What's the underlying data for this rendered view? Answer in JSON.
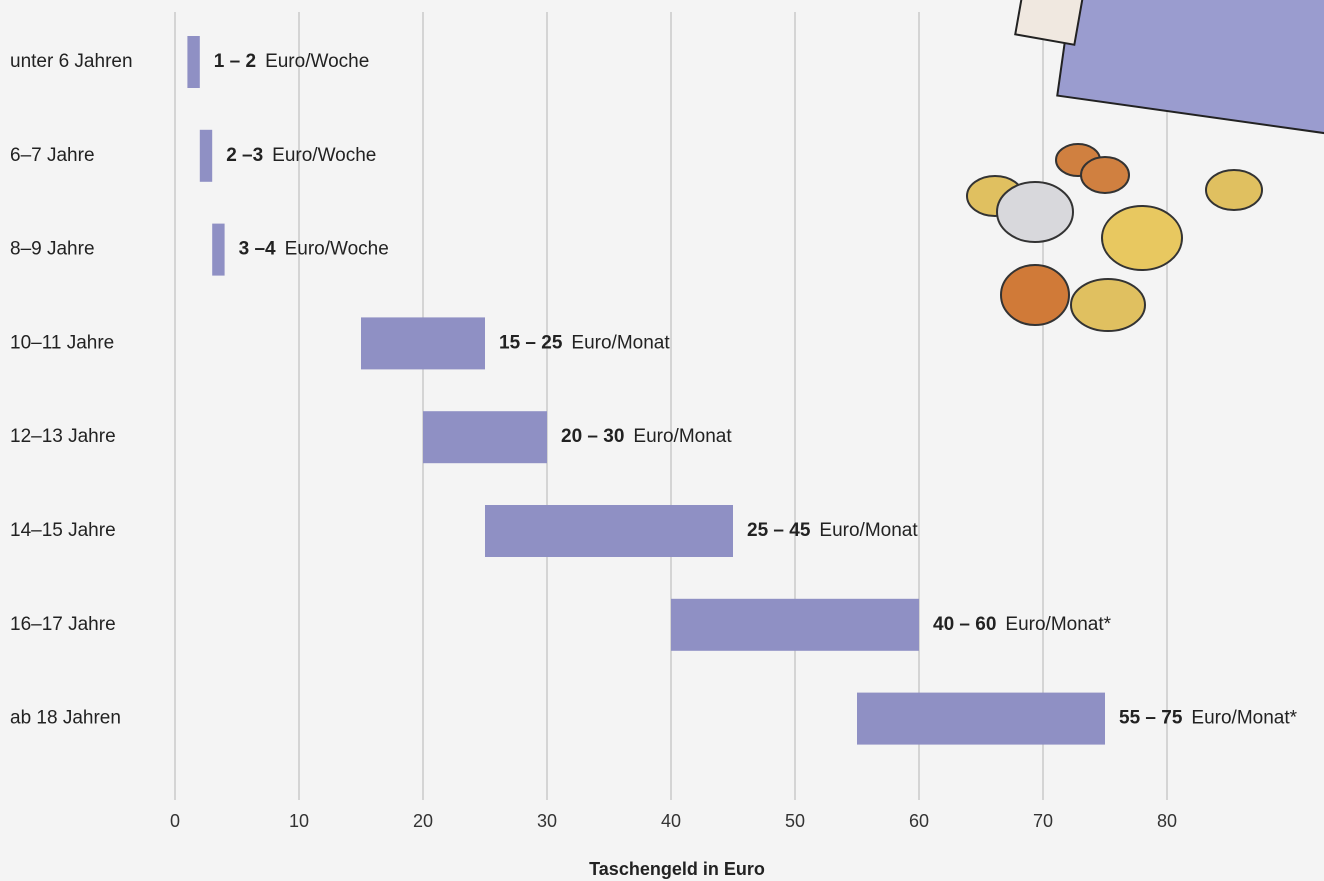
{
  "chart_data": {
    "type": "rangebar",
    "categories": [
      "unter 6 Jahren",
      "6–7 Jahre",
      "8–9 Jahre",
      "10–11 Jahre",
      "12–13 Jahre",
      "14–15 Jahre",
      "16–17 Jahre",
      "ab 18 Jahren"
    ],
    "values": [
      [
        1,
        2
      ],
      [
        2,
        3
      ],
      [
        3,
        4
      ],
      [
        15,
        25
      ],
      [
        20,
        30
      ],
      [
        25,
        45
      ],
      [
        40,
        60
      ],
      [
        55,
        75
      ]
    ],
    "value_labels": [
      "1 – 2",
      "2 –3",
      "3 –4",
      "15 – 25",
      "20 – 30",
      "25 – 45",
      "40 – 60",
      "55 – 75"
    ],
    "units": [
      "Euro/Woche",
      "Euro/Woche",
      "Euro/Woche",
      "Euro/Monat",
      "Euro/Monat",
      "Euro/Monat",
      "Euro/Monat*",
      "Euro/Monat*"
    ],
    "color": "#8f90c4",
    "xlabel": "Taschengeld in Euro",
    "xlim": [
      0,
      80
    ],
    "xticks": [
      0,
      10,
      20,
      30,
      40,
      50,
      60,
      70,
      80
    ],
    "grid": true
  }
}
